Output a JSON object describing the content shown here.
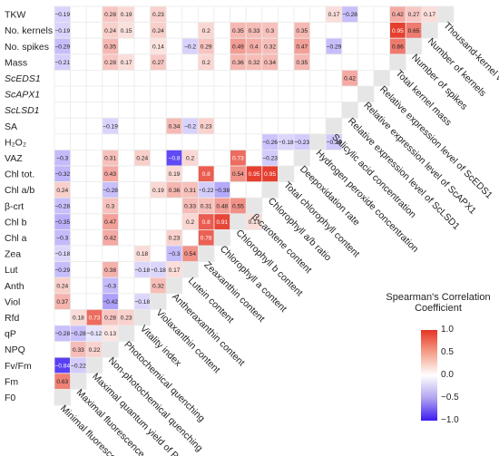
{
  "chart_data": {
    "type": "heatmap",
    "variables": [
      {
        "label": "TKW",
        "description": "Thousand-kernel weight"
      },
      {
        "label": "No. kernels",
        "description": "Number of kernels"
      },
      {
        "label": "No. spikes",
        "description": "Number of spikes"
      },
      {
        "label": "Mass",
        "description": "Total kernel mass"
      },
      {
        "label": "ScEDS1",
        "description": "Relative expression level of ScEDS1"
      },
      {
        "label": "ScAPX1",
        "description": "Relative expression level of ScAPX1"
      },
      {
        "label": "ScLSD1",
        "description": "Relative expression level of ScLSD1"
      },
      {
        "label": "SA",
        "description": "Salicylic acid concentration"
      },
      {
        "label": "H₂O₂",
        "description": "Hydrogen peroxide concentration"
      },
      {
        "label": "VAZ",
        "description": "Deepoxidation rate"
      },
      {
        "label": "Chl tot.",
        "description": "Total chlorophyll content"
      },
      {
        "label": "Chl a/b",
        "description": "Chlorophyll a/b ratio"
      },
      {
        "label": "β-crt",
        "description": "β-carotene content"
      },
      {
        "label": "Chl b",
        "description": "Chlorophyll b content"
      },
      {
        "label": "Chl a",
        "description": "Chlorophyll a content"
      },
      {
        "label": "Zea",
        "description": "Zeaxanthin content"
      },
      {
        "label": "Lut",
        "description": "Lutein content"
      },
      {
        "label": "Anth",
        "description": "Antheraxanthin content"
      },
      {
        "label": "Viol",
        "description": "Violaxanthin content"
      },
      {
        "label": "Rfd",
        "description": "Vitality index"
      },
      {
        "label": "qP",
        "description": "Photochemical quenching"
      },
      {
        "label": "NPQ",
        "description": "Non-photochemical quenching"
      },
      {
        "label": "Fv/Fm",
        "description": "Maximal quantum yield of PSII"
      },
      {
        "label": "Fm",
        "description": "Maximal fluorescence"
      },
      {
        "label": "F0",
        "description": "Minimal fluorescence"
      }
    ],
    "correlations": [
      {
        "row": "TKW",
        "col": "F0",
        "value": -0.19
      },
      {
        "row": "TKW",
        "col": "NPQ",
        "value": 0.28
      },
      {
        "row": "TKW",
        "col": "qP",
        "value": 0.19
      },
      {
        "row": "TKW",
        "col": "Viol",
        "value": 0.23
      },
      {
        "row": "TKW",
        "col": "SA",
        "value": 0.17
      },
      {
        "row": "TKW",
        "col": "ScLSD1",
        "value": -0.28
      },
      {
        "row": "TKW",
        "col": "Mass",
        "value": 0.42
      },
      {
        "row": "TKW",
        "col": "No. spikes",
        "value": 0.27
      },
      {
        "row": "TKW",
        "col": "No. kernels",
        "value": 0.17
      },
      {
        "row": "No. kernels",
        "col": "F0",
        "value": -0.19
      },
      {
        "row": "No. kernels",
        "col": "NPQ",
        "value": 0.24
      },
      {
        "row": "No. kernels",
        "col": "qP",
        "value": 0.15
      },
      {
        "row": "No. kernels",
        "col": "Viol",
        "value": 0.24
      },
      {
        "row": "No. kernels",
        "col": "Zea",
        "value": 0.2
      },
      {
        "row": "No. kernels",
        "col": "Chl b",
        "value": 0.35
      },
      {
        "row": "No. kernels",
        "col": "β-crt",
        "value": 0.33
      },
      {
        "row": "No. kernels",
        "col": "Chl a/b",
        "value": 0.3
      },
      {
        "row": "No. kernels",
        "col": "VAZ",
        "value": 0.35
      },
      {
        "row": "No. kernels",
        "col": "Mass",
        "value": 0.95
      },
      {
        "row": "No. kernels",
        "col": "No. spikes",
        "value": 0.65
      },
      {
        "row": "No. spikes",
        "col": "F0",
        "value": -0.29
      },
      {
        "row": "No. spikes",
        "col": "NPQ",
        "value": 0.35
      },
      {
        "row": "No. spikes",
        "col": "Viol",
        "value": 0.14
      },
      {
        "row": "No. spikes",
        "col": "Lut",
        "value": -0.2
      },
      {
        "row": "No. spikes",
        "col": "Zea",
        "value": 0.29
      },
      {
        "row": "No. spikes",
        "col": "Chl b",
        "value": 0.49
      },
      {
        "row": "No. spikes",
        "col": "β-crt",
        "value": 0.4
      },
      {
        "row": "No. spikes",
        "col": "Chl a/b",
        "value": 0.32
      },
      {
        "row": "No. spikes",
        "col": "VAZ",
        "value": 0.47
      },
      {
        "row": "No. spikes",
        "col": "SA",
        "value": -0.29
      },
      {
        "row": "No. spikes",
        "col": "Mass",
        "value": 0.66
      },
      {
        "row": "Mass",
        "col": "F0",
        "value": -0.21
      },
      {
        "row": "Mass",
        "col": "NPQ",
        "value": 0.28
      },
      {
        "row": "Mass",
        "col": "qP",
        "value": 0.17
      },
      {
        "row": "Mass",
        "col": "Viol",
        "value": 0.27
      },
      {
        "row": "Mass",
        "col": "Zea",
        "value": 0.2
      },
      {
        "row": "Mass",
        "col": "Chl b",
        "value": 0.36
      },
      {
        "row": "Mass",
        "col": "β-crt",
        "value": 0.32
      },
      {
        "row": "Mass",
        "col": "Chl a/b",
        "value": 0.34
      },
      {
        "row": "Mass",
        "col": "VAZ",
        "value": 0.35
      },
      {
        "row": "ScEDS1",
        "col": "ScLSD1",
        "value": 0.42
      },
      {
        "row": "SA",
        "col": "NPQ",
        "value": -0.19
      },
      {
        "row": "SA",
        "col": "Anth",
        "value": 0.34
      },
      {
        "row": "SA",
        "col": "Lut",
        "value": -0.2
      },
      {
        "row": "SA",
        "col": "Zea",
        "value": 0.23
      },
      {
        "row": "H₂O₂",
        "col": "Chl a/b",
        "value": -0.26
      },
      {
        "row": "H₂O₂",
        "col": "Chl tot.",
        "value": -0.18
      },
      {
        "row": "H₂O₂",
        "col": "VAZ",
        "value": -0.23
      },
      {
        "row": "H₂O₂",
        "col": "SA",
        "value": -0.24
      },
      {
        "row": "VAZ",
        "col": "F0",
        "value": -0.3
      },
      {
        "row": "VAZ",
        "col": "NPQ",
        "value": 0.31
      },
      {
        "row": "VAZ",
        "col": "Rfd",
        "value": 0.24
      },
      {
        "row": "VAZ",
        "col": "Anth",
        "value": -0.8
      },
      {
        "row": "VAZ",
        "col": "Lut",
        "value": 0.2
      },
      {
        "row": "VAZ",
        "col": "Chl b",
        "value": 0.73
      },
      {
        "row": "VAZ",
        "col": "Chl a/b",
        "value": -0.23
      },
      {
        "row": "Chl tot.",
        "col": "F0",
        "value": -0.32
      },
      {
        "row": "Chl tot.",
        "col": "NPQ",
        "value": 0.43
      },
      {
        "row": "Chl tot.",
        "col": "Anth",
        "value": 0.19
      },
      {
        "row": "Chl tot.",
        "col": "Zea",
        "value": 0.8
      },
      {
        "row": "Chl tot.",
        "col": "β-crt",
        "value": 0.95
      },
      {
        "row": "Chl tot.",
        "col": "Chl a/b",
        "value": 0.95
      },
      {
        "row": "Chl tot.",
        "col": "Chl b",
        "value": 0.54
      },
      {
        "row": "Chl a/b",
        "col": "F0",
        "value": 0.24
      },
      {
        "row": "Chl a/b",
        "col": "NPQ",
        "value": -0.28
      },
      {
        "row": "Chl a/b",
        "col": "Viol",
        "value": 0.19
      },
      {
        "row": "Chl a/b",
        "col": "Anth",
        "value": 0.36
      },
      {
        "row": "Chl a/b",
        "col": "Lut",
        "value": 0.31
      },
      {
        "row": "Chl a/b",
        "col": "Zea",
        "value": -0.22
      },
      {
        "row": "Chl a/b",
        "col": "Chl a",
        "value": -0.38
      },
      {
        "row": "β-crt",
        "col": "F0",
        "value": -0.28
      },
      {
        "row": "β-crt",
        "col": "NPQ",
        "value": 0.3
      },
      {
        "row": "β-crt",
        "col": "Lut",
        "value": 0.33
      },
      {
        "row": "β-crt",
        "col": "Zea",
        "value": 0.31
      },
      {
        "row": "β-crt",
        "col": "Chl b",
        "value": 0.55
      },
      {
        "row": "β-crt",
        "col": "Chl a",
        "value": 0.48
      },
      {
        "row": "Chl b",
        "col": "F0",
        "value": -0.35
      },
      {
        "row": "Chl b",
        "col": "NPQ",
        "value": 0.47
      },
      {
        "row": "Chl b",
        "col": "Lut",
        "value": 0.2
      },
      {
        "row": "Chl b",
        "col": "Zea",
        "value": 0.8
      },
      {
        "row": "Chl b",
        "col": "β-crt",
        "value": 0.17
      },
      {
        "row": "Chl b",
        "col": "Chl a",
        "value": 0.91
      },
      {
        "row": "Chl a",
        "col": "F0",
        "value": -0.3
      },
      {
        "row": "Chl a",
        "col": "NPQ",
        "value": 0.42
      },
      {
        "row": "Chl a",
        "col": "Anth",
        "value": 0.23
      },
      {
        "row": "Chl a",
        "col": "Zea",
        "value": 0.78
      },
      {
        "row": "Zea",
        "col": "F0",
        "value": -0.18
      },
      {
        "row": "Zea",
        "col": "Rfd",
        "value": 0.18
      },
      {
        "row": "Zea",
        "col": "Anth",
        "value": -0.3
      },
      {
        "row": "Zea",
        "col": "Lut",
        "value": 0.54
      },
      {
        "row": "Lut",
        "col": "F0",
        "value": -0.29
      },
      {
        "row": "Lut",
        "col": "NPQ",
        "value": 0.38
      },
      {
        "row": "Lut",
        "col": "Rfd",
        "value": -0.18
      },
      {
        "row": "Lut",
        "col": "Viol",
        "value": -0.18
      },
      {
        "row": "Lut",
        "col": "Anth",
        "value": 0.17
      },
      {
        "row": "Anth",
        "col": "F0",
        "value": 0.24
      },
      {
        "row": "Anth",
        "col": "NPQ",
        "value": -0.3
      },
      {
        "row": "Anth",
        "col": "Viol",
        "value": 0.32
      },
      {
        "row": "Viol",
        "col": "F0",
        "value": 0.37
      },
      {
        "row": "Viol",
        "col": "NPQ",
        "value": -0.42
      },
      {
        "row": "Viol",
        "col": "Rfd",
        "value": -0.18
      },
      {
        "row": "Rfd",
        "col": "NPQ",
        "value": 0.28
      },
      {
        "row": "Rfd",
        "col": "qP",
        "value": 0.23
      },
      {
        "row": "Rfd",
        "col": "Fv/Fm",
        "value": 0.73
      },
      {
        "row": "Rfd",
        "col": "Fm",
        "value": 0.18
      },
      {
        "row": "qP",
        "col": "F0",
        "value": -0.28
      },
      {
        "row": "qP",
        "col": "Fm",
        "value": -0.28
      },
      {
        "row": "qP",
        "col": "NPQ",
        "value": 0.13
      },
      {
        "row": "qP",
        "col": "Fv/Fm",
        "value": -0.12
      },
      {
        "row": "NPQ",
        "col": "Fm",
        "value": 0.33
      },
      {
        "row": "NPQ",
        "col": "Fv/Fm",
        "value": 0.22
      },
      {
        "row": "Fv/Fm",
        "col": "F0",
        "value": -0.84
      },
      {
        "row": "Fv/Fm",
        "col": "Fm",
        "value": -0.22
      },
      {
        "row": "Fm",
        "col": "F0",
        "value": 0.63
      }
    ],
    "legend": {
      "title": "Spearman's Correlation Coefficient",
      "ticks": [
        "1.0",
        "0.5",
        "0.0",
        "−0.5",
        "−1.0"
      ],
      "range": [
        -1.0,
        1.0
      ],
      "placement": "bottom-right"
    },
    "colors": {
      "positive": "#e53524",
      "neutral": "#ffffff",
      "negative": "#3a1cf2",
      "diagonal": "#e6e6e6",
      "grid": "#ebebeb"
    }
  }
}
